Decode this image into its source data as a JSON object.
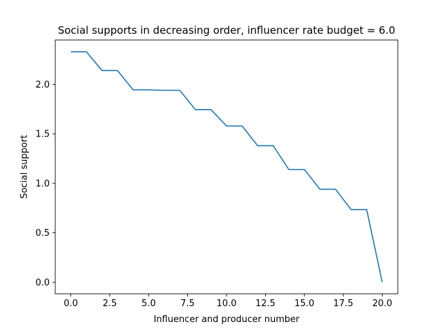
{
  "chart_data": {
    "type": "line",
    "title": "Social supports in decreasing order, influencer rate budget = 6.0",
    "xlabel": "Influencer and producer number",
    "ylabel": "Social support",
    "xlim": [
      -1.0,
      21.0
    ],
    "ylim": [
      -0.1166,
      2.449
    ],
    "xticks": [
      0.0,
      2.5,
      5.0,
      7.5,
      10.0,
      12.5,
      15.0,
      17.5,
      20.0
    ],
    "xtick_labels": [
      "0.0",
      "2.5",
      "5.0",
      "7.5",
      "10.0",
      "12.5",
      "15.0",
      "17.5",
      "20.0"
    ],
    "yticks": [
      0.0,
      0.5,
      1.0,
      1.5,
      2.0
    ],
    "ytick_labels": [
      "0.0",
      "0.5",
      "1.0",
      "1.5",
      "2.0"
    ],
    "grid": false,
    "series": [
      {
        "color": "#1f77b4",
        "x": [
          0,
          1,
          2,
          3,
          4,
          5,
          6,
          7,
          8,
          9,
          10,
          11,
          12,
          13,
          14,
          15,
          16,
          17,
          18,
          19,
          20
        ],
        "y": [
          2.33,
          2.33,
          2.14,
          2.14,
          1.945,
          1.945,
          1.94,
          1.94,
          1.745,
          1.745,
          1.58,
          1.58,
          1.38,
          1.38,
          1.14,
          1.14,
          0.94,
          0.94,
          0.735,
          0.735,
          0.0
        ]
      }
    ]
  }
}
